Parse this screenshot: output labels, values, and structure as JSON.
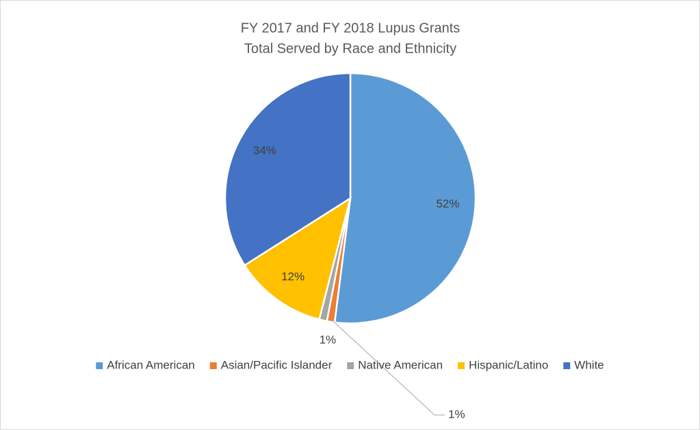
{
  "chart_data": {
    "type": "pie",
    "title": "FY 2017 and FY 2018 Lupus Grants",
    "subtitle": "Total Served by Race and Ethnicity",
    "categories": [
      "African American",
      "Asian/Pacific Islander",
      "Native American",
      "Hispanic/Latino",
      "White"
    ],
    "values": [
      52,
      1,
      1,
      12,
      34
    ],
    "value_labels": [
      "52%",
      "1%",
      "1%",
      "12%",
      "34%"
    ],
    "colors": [
      "#5b9bd5",
      "#ed7d31",
      "#a5a5a5",
      "#ffc000",
      "#4472c4"
    ],
    "legend": "bottom"
  }
}
